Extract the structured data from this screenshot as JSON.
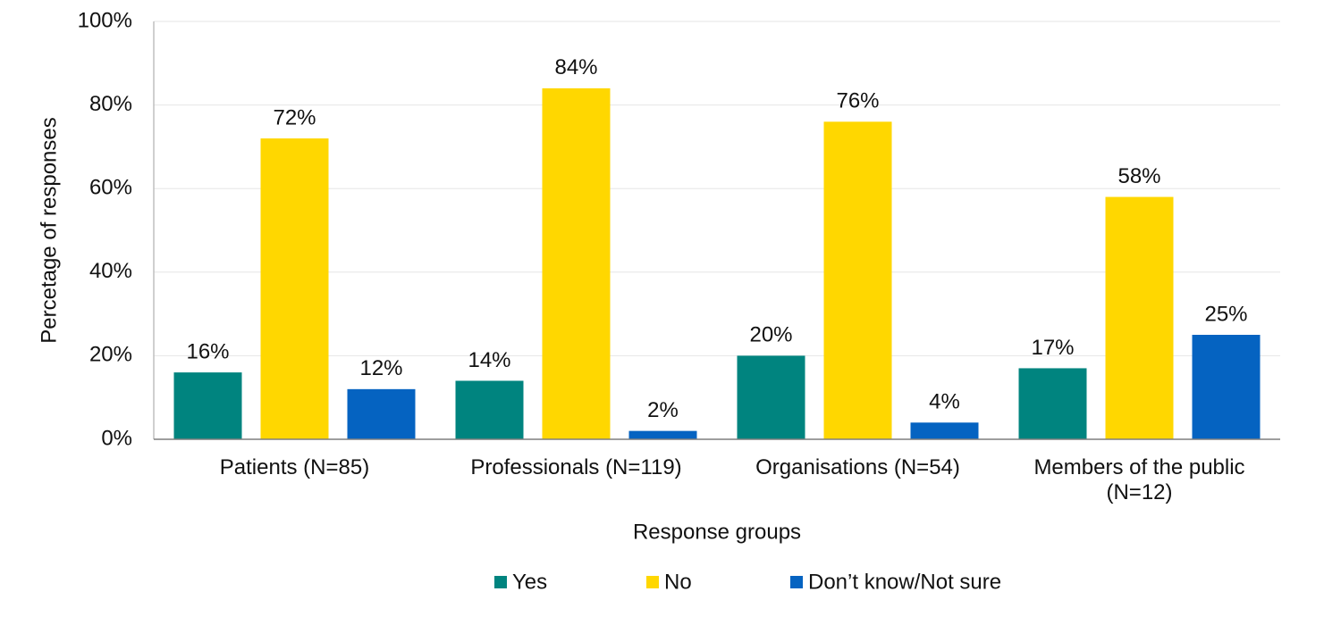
{
  "chart_data": {
    "type": "bar",
    "x_label": "Response groups",
    "y_label": "Percetage of responses",
    "categories": [
      "Patients (N=85)",
      "Professionals (N=119)",
      "Organisations (N=54)",
      "Members of the public (N=12)"
    ],
    "series": [
      {
        "name": "Yes",
        "color": "#00847f",
        "values": [
          16,
          14,
          20,
          17
        ],
        "value_labels": [
          "16%",
          "14%",
          "20%",
          "17%"
        ]
      },
      {
        "name": "No",
        "color": "#ffd700",
        "values": [
          72,
          84,
          76,
          58
        ],
        "value_labels": [
          "72%",
          "84%",
          "76%",
          "58%"
        ]
      },
      {
        "name": "Don’t know/Not sure",
        "color": "#0563c1",
        "values": [
          12,
          2,
          4,
          25
        ],
        "value_labels": [
          "12%",
          "2%",
          "4%",
          "25%"
        ]
      }
    ],
    "ylim": [
      0,
      100
    ],
    "yticks": [
      {
        "value": 0,
        "label": "0%"
      },
      {
        "value": 20,
        "label": "20%"
      },
      {
        "value": 40,
        "label": "40%"
      },
      {
        "value": 60,
        "label": "60%"
      },
      {
        "value": 80,
        "label": "80%"
      },
      {
        "value": 100,
        "label": "100%"
      }
    ],
    "grid": true,
    "legend": "bottom"
  }
}
